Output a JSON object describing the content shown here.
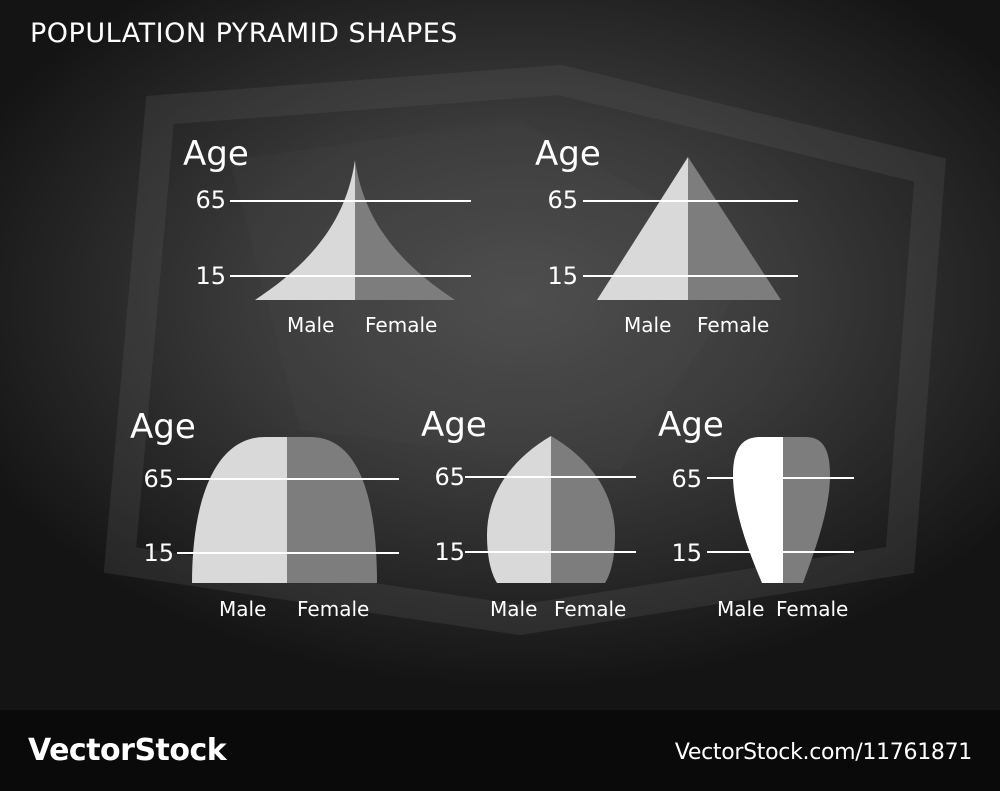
{
  "title": "POPULATION PYRAMID SHAPES",
  "labels": {
    "age": "Age",
    "tick_high": "65",
    "tick_low": "15",
    "male": "Male",
    "female": "Female"
  },
  "colors": {
    "background": "#3a3a3a",
    "male_fill": "#d9d9d9",
    "female_fill": "#7d7d7d",
    "lines": "#ffffff",
    "text": "#ffffff"
  },
  "diagrams": [
    {
      "shape": "expansive-concave-pyramid"
    },
    {
      "shape": "triangular-pyramid"
    },
    {
      "shape": "stationary-dome"
    },
    {
      "shape": "rounded-dome"
    },
    {
      "shape": "constrictive-teardrop"
    }
  ],
  "watermark": {
    "brand": "VectorStock",
    "url": "VectorStock.com/11761871"
  }
}
